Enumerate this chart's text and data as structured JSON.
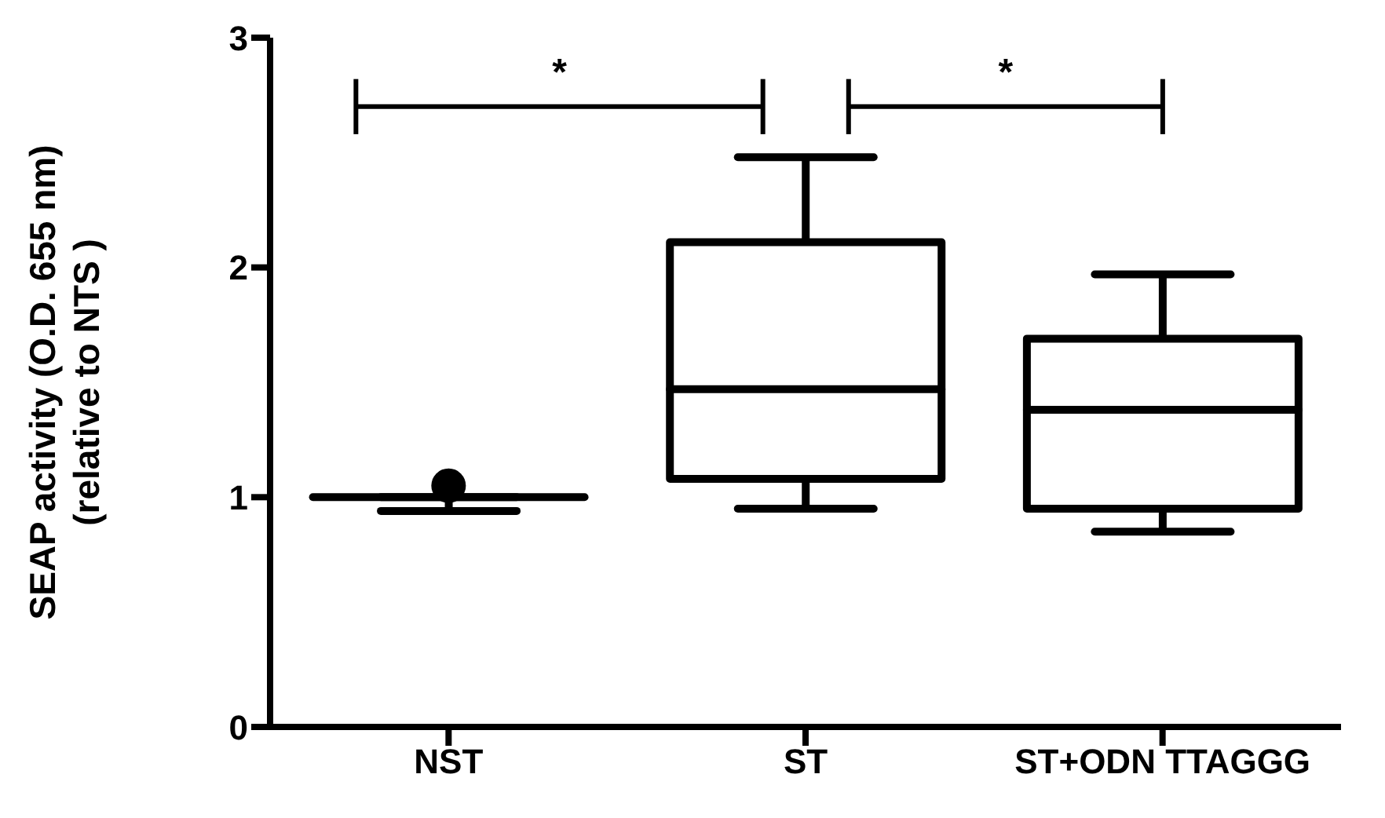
{
  "chart_data": {
    "type": "box",
    "ylabel": "SEAP activity (O.D. 655 nm)\n(relative to NTS )",
    "categories": [
      "NST",
      "ST",
      "ST+ODN TTAGGG"
    ],
    "color": "#000000",
    "boxes": [
      {
        "low": 0.94,
        "q1": 1.0,
        "median": 1.0,
        "q3": 1.0,
        "high": 1.0,
        "outliers": [
          1.05
        ]
      },
      {
        "low": 0.95,
        "q1": 1.08,
        "median": 1.47,
        "q3": 2.11,
        "high": 2.48
      },
      {
        "low": 0.85,
        "q1": 0.95,
        "median": 1.38,
        "q3": 1.69,
        "high": 1.97
      }
    ],
    "ylim": [
      0,
      3
    ],
    "yticks": [
      0,
      1,
      2,
      3
    ],
    "annotations": [
      "*",
      "*"
    ]
  }
}
